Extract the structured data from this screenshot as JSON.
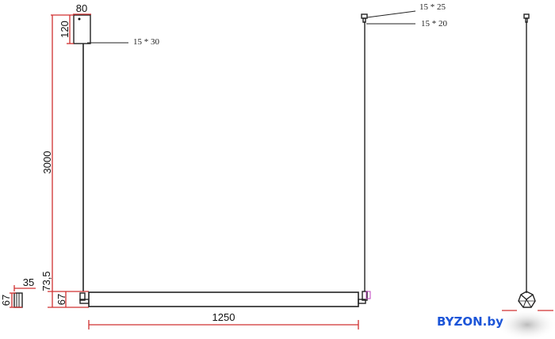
{
  "dimensions": {
    "canopy_width": "80",
    "canopy_height": "120",
    "cable_length": "3000",
    "offset": "73,5",
    "profile_height": "67",
    "end_height": "67",
    "end_width": "35",
    "length": "1250"
  },
  "leaders": {
    "canopy_fix": "15 * 30",
    "top_cap": "15 * 25",
    "cable_holder": "15 * 20"
  },
  "brand": {
    "text": "BYZON.by",
    "color": "#1c55d8"
  },
  "colors": {
    "dimension_lines": "#d03030",
    "outline": "#222222",
    "connector_highlight": "#c040c0"
  }
}
